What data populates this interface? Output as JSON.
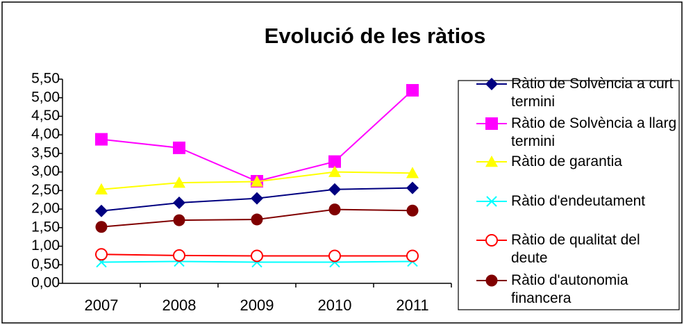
{
  "chart_data": {
    "type": "line",
    "title": "Evolució de les ràtios",
    "categories": [
      "2007",
      "2008",
      "2009",
      "2010",
      "2011"
    ],
    "series": [
      {
        "name": "Ràtio de Solvència a curt termini",
        "color": "#000080",
        "marker": "diamond",
        "values": [
          1.95,
          2.17,
          2.29,
          2.53,
          2.57
        ]
      },
      {
        "name": "Ràtio de Solvència a llarg termini",
        "color": "#FF00FF",
        "marker": "square",
        "values": [
          3.88,
          3.65,
          2.75,
          3.28,
          5.2
        ]
      },
      {
        "name": "Ràtio de garantia",
        "color": "#FFFF00",
        "marker": "triangle",
        "values": [
          2.53,
          2.71,
          2.74,
          3.0,
          2.97
        ]
      },
      {
        "name": "Ràtio d'endeutament",
        "color": "#00FFFF",
        "marker": "x",
        "values": [
          0.57,
          0.59,
          0.57,
          0.57,
          0.59
        ]
      },
      {
        "name": "Ràtio de qualitat del deute",
        "color": "#FF0000",
        "marker": "circle-open",
        "values": [
          0.78,
          0.75,
          0.74,
          0.74,
          0.74
        ]
      },
      {
        "name": "Ràtio d'autonomia financera",
        "color": "#800000",
        "marker": "circle",
        "values": [
          1.52,
          1.7,
          1.72,
          1.99,
          1.96
        ]
      }
    ],
    "ylim": [
      0,
      5.5
    ],
    "yticks": [
      {
        "value": 0,
        "label": "0,00"
      },
      {
        "value": 0.5,
        "label": "0,50"
      },
      {
        "value": 1,
        "label": "1,00"
      },
      {
        "value": 1.5,
        "label": "1,50"
      },
      {
        "value": 2,
        "label": "2,00"
      },
      {
        "value": 2.5,
        "label": "2,50"
      },
      {
        "value": 3,
        "label": "3,00"
      },
      {
        "value": 3.5,
        "label": "3,50"
      },
      {
        "value": 4,
        "label": "4,00"
      },
      {
        "value": 4.5,
        "label": "4,50"
      },
      {
        "value": 5,
        "label": "5,00"
      },
      {
        "value": 5.5,
        "label": "5,50"
      }
    ],
    "grid": false,
    "legend": "right"
  }
}
